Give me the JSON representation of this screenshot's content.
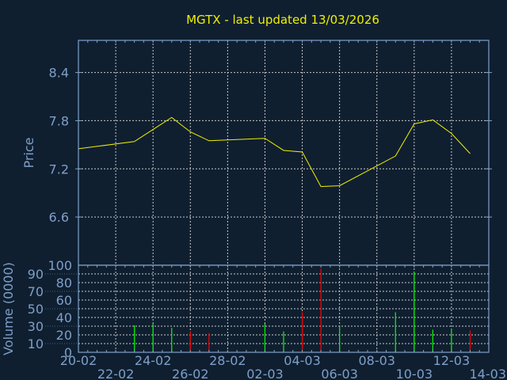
{
  "chart_data": [
    {
      "type": "line",
      "title": "MGTX - last updated 13/03/2026",
      "ylabel": "Price",
      "xlim": [
        "2026-02-20",
        "2026-03-14"
      ],
      "ylim": [
        6.0,
        8.8
      ],
      "yticks": [
        "6.6",
        "7.2",
        "7.8",
        "8.4"
      ],
      "grid": true,
      "colors": {
        "line": "#f0f000",
        "background": "#0f1f30",
        "axis": "#7f9fc8",
        "grid": "#c8c8c8"
      },
      "series": [
        {
          "x": [
            "2026-02-20",
            "2026-02-23",
            "2026-02-24",
            "2026-02-25",
            "2026-02-26",
            "2026-02-27",
            "2026-03-02",
            "2026-03-03",
            "2026-03-04",
            "2026-03-05",
            "2026-03-06",
            "2026-03-09",
            "2026-03-10",
            "2026-03-11",
            "2026-03-12",
            "2026-03-13"
          ],
          "y": [
            7.45,
            7.54,
            7.69,
            7.84,
            7.66,
            7.55,
            7.58,
            7.43,
            7.41,
            6.98,
            6.99,
            7.36,
            7.76,
            7.81,
            7.64,
            7.39
          ]
        }
      ]
    },
    {
      "type": "bar",
      "ylabel": "Volume (0000)",
      "xlim": [
        "2026-02-20",
        "2026-03-14"
      ],
      "ylim": [
        0,
        100
      ],
      "yticks": [
        "0",
        "10",
        "20",
        "30",
        "40",
        "50",
        "60",
        "70",
        "80",
        "90",
        "100"
      ],
      "xticks": [
        "20-02",
        "22-02",
        "24-02",
        "26-02",
        "28-02",
        "02-03",
        "04-03",
        "06-03",
        "08-03",
        "10-03",
        "12-03",
        "14-03"
      ],
      "grid": true,
      "colors": {
        "up": "#00f000",
        "down": "#f00000"
      },
      "series": [
        {
          "x": [
            "2026-02-23",
            "2026-02-24",
            "2026-02-25",
            "2026-02-26",
            "2026-02-27",
            "2026-03-02",
            "2026-03-03",
            "2026-03-04",
            "2026-03-05",
            "2026-03-06",
            "2026-03-09",
            "2026-03-10",
            "2026-03-11",
            "2026-03-12",
            "2026-03-13"
          ],
          "y": [
            31,
            33,
            28,
            24,
            22,
            33,
            24,
            46,
            96,
            31,
            46,
            92,
            26,
            27,
            25
          ],
          "direction": [
            "up",
            "up",
            "up",
            "down",
            "down",
            "up",
            "up",
            "down",
            "down",
            "up",
            "up",
            "up",
            "up",
            "up",
            "down"
          ]
        }
      ]
    }
  ]
}
